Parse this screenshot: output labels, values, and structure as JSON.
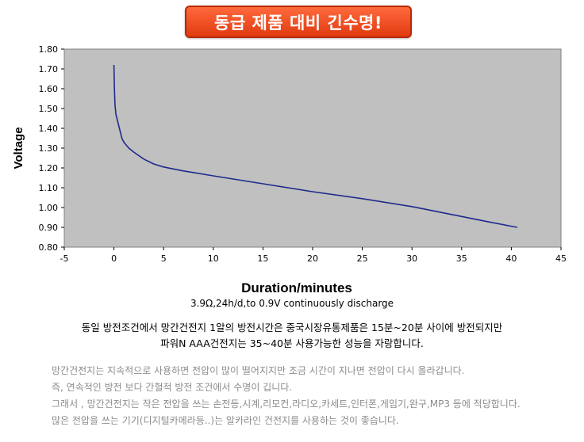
{
  "banner": {
    "text": "동급 제품 대비 긴수명!"
  },
  "chart_data": {
    "type": "line",
    "xlabel": "Duration/minutes",
    "ylabel": "Voltage",
    "xlim": [
      -5,
      45
    ],
    "ylim": [
      0.8,
      1.8
    ],
    "x_ticks": [
      "-5",
      "0",
      "5",
      "10",
      "15",
      "20",
      "25",
      "30",
      "35",
      "40",
      "45"
    ],
    "y_ticks": [
      "0.80",
      "0.90",
      "1.00",
      "1.10",
      "1.20",
      "1.30",
      "1.40",
      "1.50",
      "1.60",
      "1.70",
      "1.80"
    ],
    "grid": false,
    "colors": {
      "plot_bg": "#c0c0c0",
      "line": "#1f2a8a"
    },
    "series": [
      {
        "x": [
          0,
          0.05,
          0.1,
          0.2,
          0.4,
          0.6,
          0.8,
          1.0,
          1.5,
          2,
          3,
          4,
          5,
          7,
          10,
          15,
          20,
          25,
          30,
          33,
          36,
          38,
          40.6
        ],
        "values": [
          1.72,
          1.6,
          1.52,
          1.47,
          1.43,
          1.39,
          1.35,
          1.33,
          1.3,
          1.28,
          1.245,
          1.22,
          1.205,
          1.185,
          1.16,
          1.12,
          1.08,
          1.045,
          1.005,
          0.975,
          0.945,
          0.925,
          0.9
        ]
      }
    ]
  },
  "caption": "3.9Ω,24h/d,to 0.9V continuously discharge",
  "summary": [
    "동일 방전조건에서  망간건전지 1알의 방전시간은  중국시장유통제품은 15분~20분 사이에 방전되지만",
    "파워N AAA건전지는 35~40분 사용가능한 성능을 자랑합니다."
  ],
  "notes": [
    "망간건전지는 지속적으로 사용하면 전압이 많이 떨어지지만 조금 시간이 지나면 전압이 다시 올라갑니다.",
    "즉, 연속적인 방전 보다 간헐적 방전 조건에서 수명이 깁니다.",
    "그래서 , 망간건전지는 작은 전압을  쓰는  손전등,시계,리모컨,라디오,카세트,인터폰,게임기,완구,MP3 등에 적당합니다.",
    "많은 전압을 쓰는 기기(디지털카메라등..)는 알카라인 건전지를 사용하는 것이 좋습니다."
  ]
}
